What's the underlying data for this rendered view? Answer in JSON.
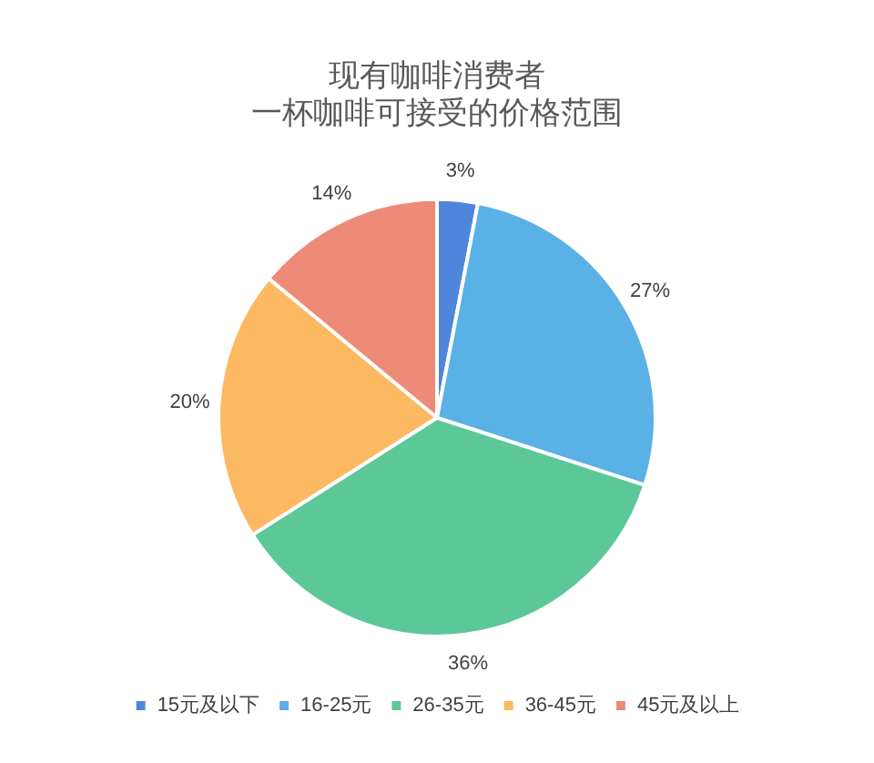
{
  "chart_data": {
    "type": "pie",
    "title": "现有咖啡消费者",
    "subtitle": "一杯咖啡可接受的价格范围",
    "categories": [
      "15元及以下",
      "16-25元",
      "26-35元",
      "36-45元",
      "45元及以上"
    ],
    "values": [
      3,
      27,
      36,
      20,
      14
    ],
    "colors": [
      "#4f86dc",
      "#5ab1e6",
      "#5cc898",
      "#fdb862",
      "#ee8a78"
    ],
    "value_labels": [
      "3%",
      "27%",
      "36%",
      "20%",
      "14%"
    ],
    "legend": "bottom"
  }
}
